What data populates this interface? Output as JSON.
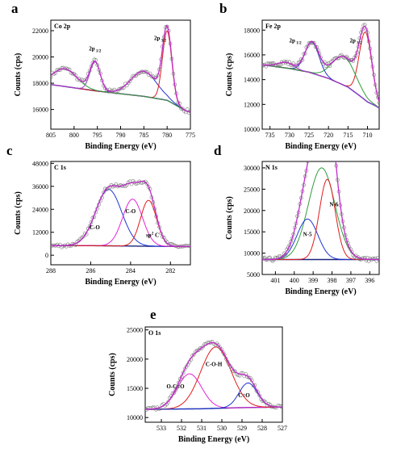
{
  "chart_data": [
    {
      "id": "a",
      "type": "line",
      "letter": "a",
      "title": "Co 2p",
      "xlabel": "Binding Energy (eV)",
      "ylabel": "Counts (cps)",
      "xlim": [
        805,
        775
      ],
      "ylim": [
        14500,
        22800
      ],
      "reversed_x": true,
      "xticks": [
        805,
        800,
        795,
        790,
        785,
        780,
        775
      ],
      "yticks": [
        16000,
        18000,
        20000,
        22000
      ],
      "annotations": [
        {
          "text": "2p",
          "sub": "1/2",
          "x": 795.5,
          "y": 20500
        },
        {
          "text": "2p",
          "sub": "3/2",
          "x": 781.5,
          "y": 21300
        }
      ],
      "background": [
        [
          805,
          17900
        ],
        [
          800,
          17650
        ],
        [
          795,
          17400
        ],
        [
          790,
          17200
        ],
        [
          785,
          17000
        ],
        [
          780,
          16700
        ],
        [
          778,
          16300
        ],
        [
          776,
          15900
        ],
        [
          775,
          15800
        ]
      ],
      "series": [
        {
          "color": "#1f35d6",
          "peak_center": 785.0,
          "peak_height": 1900,
          "peak_width": 2.8
        },
        {
          "color": "#e21b1b",
          "peak_center": 780.0,
          "peak_height": 5300,
          "peak_width": 1.0
        },
        {
          "color": "#a23ad6",
          "peak_center": 795.5,
          "peak_height": 2200,
          "peak_width": 1.1
        },
        {
          "color": "#2e9e3b",
          "peak_center": 802.0,
          "peak_height": 1350,
          "peak_width": 2.6
        }
      ]
    },
    {
      "id": "b",
      "type": "line",
      "letter": "b",
      "title": "Fe 2p",
      "xlabel": "Binding Energy (eV)",
      "ylabel": "Counts (cps)",
      "xlim": [
        737,
        707
      ],
      "ylim": [
        10000,
        18800
      ],
      "reversed_x": true,
      "xticks": [
        735,
        730,
        725,
        720,
        715,
        710
      ],
      "yticks": [
        10000,
        12000,
        14000,
        16000,
        18000
      ],
      "annotations": [
        {
          "text": "2p",
          "sub": "1/2",
          "x": 728.5,
          "y": 17000
        },
        {
          "text": "2p",
          "sub": "3/2",
          "x": 713.0,
          "y": 17000
        }
      ],
      "background": [
        [
          737,
          15200
        ],
        [
          730,
          14900
        ],
        [
          725,
          14600
        ],
        [
          720,
          14100
        ],
        [
          715,
          13400
        ],
        [
          712,
          12700
        ],
        [
          710,
          12200
        ],
        [
          708,
          11900
        ],
        [
          707,
          11700
        ]
      ],
      "series": [
        {
          "color": "#1f35d6",
          "peak_center": 724.2,
          "peak_height": 2500,
          "peak_width": 1.8
        },
        {
          "color": "#e21b1b",
          "peak_center": 710.5,
          "peak_height": 5500,
          "peak_width": 1.6
        },
        {
          "color": "#2e9e3b",
          "peak_center": 716.0,
          "peak_height": 2300,
          "peak_width": 3.0
        },
        {
          "color": "#a23ad6",
          "peak_center": 731.0,
          "peak_height": 450,
          "peak_width": 2.0
        }
      ]
    },
    {
      "id": "c",
      "type": "line",
      "letter": "c",
      "title": "C 1s",
      "xlabel": "Binding Energy (eV)",
      "ylabel": "Counts (cps)",
      "xlim": [
        288,
        281
      ],
      "ylim": [
        -5000,
        49000
      ],
      "reversed_x": true,
      "xticks": [
        288,
        286,
        284,
        282
      ],
      "yticks": [
        0,
        12000,
        24000,
        36000,
        48000
      ],
      "annotations": [
        {
          "text": "C-O",
          "sub": "",
          "x": 285.8,
          "y": 13500
        },
        {
          "text": "C-O",
          "sub": "",
          "x": 284.0,
          "y": 22000
        },
        {
          "text": "sp",
          "sub": "",
          "sup": "2",
          "tail": "C",
          "x": 282.9,
          "y": 9500
        }
      ],
      "background": [
        [
          288,
          5000
        ],
        [
          286,
          5000
        ],
        [
          284,
          4800
        ],
        [
          282,
          4600
        ],
        [
          281,
          4600
        ]
      ],
      "series": [
        {
          "color": "#1f35d6",
          "peak_center": 285.1,
          "peak_height": 29500,
          "peak_width": 0.65
        },
        {
          "color": "#e424d7",
          "peak_center": 283.9,
          "peak_height": 24500,
          "peak_width": 0.5
        },
        {
          "color": "#e21b1b",
          "peak_center": 283.1,
          "peak_height": 24000,
          "peak_width": 0.4
        }
      ]
    },
    {
      "id": "d",
      "type": "line",
      "letter": "d",
      "title": "N 1s",
      "xlabel": "Binding Energy (eV)",
      "ylabel": "Counts (cps)",
      "xlim": [
        401.7,
        395.5
      ],
      "ylim": [
        5000,
        31500
      ],
      "reversed_x": true,
      "xticks": [
        401,
        400,
        399,
        398,
        397,
        396
      ],
      "yticks": [
        5000,
        10000,
        15000,
        20000,
        25000,
        30000
      ],
      "annotations": [
        {
          "text": "N-5",
          "sub": "",
          "x": 399.3,
          "y": 14000
        },
        {
          "text": "N-6",
          "sub": "",
          "x": 397.9,
          "y": 21000
        }
      ],
      "background": [
        [
          401.7,
          8500
        ],
        [
          399,
          8500
        ],
        [
          397,
          8500
        ],
        [
          395.5,
          8500
        ]
      ],
      "series": [
        {
          "color": "#2e9e3b",
          "peak_center": 398.55,
          "peak_height": 21500,
          "peak_width": 0.7
        },
        {
          "color": "#1f35d6",
          "peak_center": 399.3,
          "peak_height": 9500,
          "peak_width": 0.55
        },
        {
          "color": "#e21b1b",
          "peak_center": 398.25,
          "peak_height": 18800,
          "peak_width": 0.42
        }
      ]
    },
    {
      "id": "e",
      "type": "line",
      "letter": "e",
      "title": "O 1s",
      "xlabel": "Binding Energy (eV)",
      "ylabel": "Counts (cps)",
      "xlim": [
        533.8,
        527
      ],
      "ylim": [
        9200,
        25500
      ],
      "reversed_x": true,
      "xticks": [
        533,
        532,
        531,
        530,
        529,
        528,
        527
      ],
      "yticks": [
        10000,
        15000,
        20000,
        25000
      ],
      "annotations": [
        {
          "text": "O-C=O",
          "sub": "",
          "x": 532.3,
          "y": 15000
        },
        {
          "text": "C-O-H",
          "sub": "",
          "x": 530.4,
          "y": 18800
        },
        {
          "text": "C=O",
          "sub": "",
          "x": 528.9,
          "y": 13500
        }
      ],
      "background": [
        [
          533.8,
          11400
        ],
        [
          531,
          11500
        ],
        [
          529,
          11700
        ],
        [
          527,
          11800
        ]
      ],
      "series": [
        {
          "color": "#e424d7",
          "peak_center": 531.6,
          "peak_height": 6000,
          "peak_width": 0.6
        },
        {
          "color": "#e21b1b",
          "peak_center": 530.3,
          "peak_height": 10500,
          "peak_width": 0.75
        },
        {
          "color": "#1f35d6",
          "peak_center": 528.7,
          "peak_height": 4200,
          "peak_width": 0.45
        }
      ]
    }
  ]
}
